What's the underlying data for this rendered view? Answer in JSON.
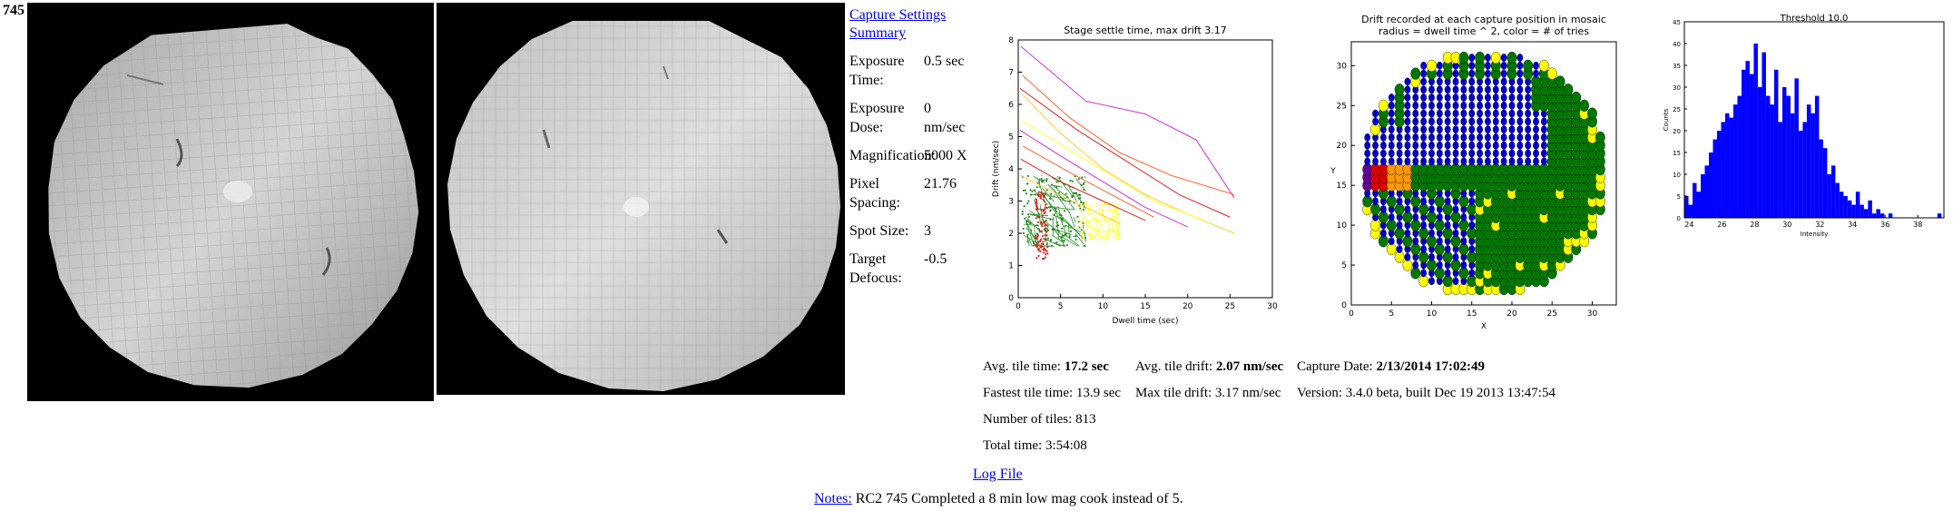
{
  "section": {
    "number": "745"
  },
  "settings": {
    "capture_settings_link": "Capture Settings",
    "summary_link": "Summary",
    "rows": [
      {
        "label": "Exposure Time:",
        "value": "0.5 sec"
      },
      {
        "label": "Exposure Dose:",
        "value": "0 nm/sec"
      },
      {
        "label": "Magnification:",
        "value": "5000 X"
      },
      {
        "label": "Pixel Spacing:",
        "value": "21.76"
      },
      {
        "label": "Spot Size:",
        "value": "3"
      },
      {
        "label": "Target Defocus:",
        "value": "-0.5"
      }
    ]
  },
  "charts": {
    "settle": {
      "title": "Stage settle time, max drift 3.17",
      "xlabel": "Dwell time (sec)",
      "ylabel": "Drift (nm/sec)",
      "xticks": [
        "0",
        "5",
        "10",
        "15",
        "20",
        "25",
        "30"
      ],
      "yticks": [
        "0",
        "1",
        "2",
        "3",
        "4",
        "5",
        "6",
        "7",
        "8"
      ]
    },
    "position": {
      "title_line1": "Drift recorded at each capture position in mosaic",
      "title_line2": "radius = dwell time ^ 2, color = # of tries",
      "xlabel": "X",
      "ylabel": "Y",
      "xticks": [
        "0",
        "5",
        "10",
        "15",
        "20",
        "25",
        "30"
      ],
      "yticks": [
        "0",
        "5",
        "10",
        "15",
        "20",
        "25",
        "30"
      ]
    },
    "histogram": {
      "title": "Threshold 10.0",
      "xlabel": "Intensity",
      "ylabel": "Counts",
      "xticks": [
        "24",
        "26",
        "28",
        "30",
        "32",
        "34",
        "36",
        "38"
      ],
      "yticks": [
        "0",
        "5",
        "10",
        "15",
        "20",
        "25",
        "30",
        "35",
        "40",
        "45"
      ]
    }
  },
  "chart_data": [
    {
      "type": "line",
      "title": "Stage settle time, max drift 3.17",
      "xlabel": "Dwell time (sec)",
      "ylabel": "Drift (nm/sec)",
      "xlim": [
        0,
        30
      ],
      "ylim": [
        0,
        8
      ],
      "grid": false,
      "series_colors": [
        "#cc33cc",
        "#ff6633",
        "#dd2222",
        "#ffcc33",
        "#ffff33",
        "#228b22"
      ],
      "long_series": [
        [
          [
            0.3,
            7.8
          ],
          [
            8,
            6.1
          ],
          [
            15,
            5.7
          ],
          [
            21,
            4.9
          ],
          [
            25.5,
            3.1
          ]
        ],
        [
          [
            0.5,
            6.9
          ],
          [
            6,
            5.6
          ],
          [
            12,
            4.5
          ],
          [
            18,
            3.8
          ],
          [
            25.5,
            3.2
          ]
        ],
        [
          [
            0.2,
            6.5
          ],
          [
            7,
            5.2
          ],
          [
            13,
            4.2
          ],
          [
            19,
            3.2
          ],
          [
            25,
            2.5
          ]
        ],
        [
          [
            0.5,
            6.3
          ],
          [
            5,
            5.1
          ],
          [
            10,
            4.0
          ],
          [
            15,
            3.2
          ],
          [
            20,
            2.6
          ],
          [
            25.5,
            2.0
          ]
        ],
        [
          [
            0.4,
            5.5
          ],
          [
            6,
            4.6
          ],
          [
            11,
            3.8
          ],
          [
            16,
            3.0
          ],
          [
            22,
            2.4
          ]
        ],
        [
          [
            0.2,
            5.2
          ],
          [
            5,
            4.4
          ],
          [
            10,
            3.6
          ],
          [
            15,
            2.8
          ],
          [
            20,
            2.2
          ]
        ],
        [
          [
            0.6,
            4.7
          ],
          [
            6,
            3.9
          ],
          [
            11,
            3.2
          ],
          [
            16,
            2.5
          ]
        ],
        [
          [
            0.3,
            4.3
          ],
          [
            5,
            3.6
          ],
          [
            10,
            3.0
          ],
          [
            15,
            2.4
          ]
        ],
        [
          [
            0.2,
            3.8
          ],
          [
            4,
            3.3
          ],
          [
            8,
            2.8
          ],
          [
            12,
            2.3
          ]
        ]
      ],
      "clusters": [
        {
          "color": "#228b22",
          "x": [
            0.5,
            8
          ],
          "y": [
            1.6,
            3.8
          ]
        },
        {
          "color": "#dd2222",
          "x": [
            2,
            3.5
          ],
          "y": [
            1.2,
            3.3
          ]
        },
        {
          "color": "#ffff33",
          "x": [
            7,
            12
          ],
          "y": [
            1.8,
            3.0
          ]
        }
      ]
    },
    {
      "type": "scatter",
      "title": "Drift recorded at each capture position in mosaic radius = dwell time ^ 2, color = # of tries",
      "xlabel": "X",
      "ylabel": "Y",
      "xlim": [
        0,
        33
      ],
      "ylim": [
        0,
        33
      ],
      "grid_extent": {
        "x": [
          1,
          32
        ],
        "y": [
          1,
          32
        ],
        "circle_center": [
          16.5,
          16.5
        ],
        "circle_radius": 15.5
      },
      "colors": {
        "blue": "#0000cc",
        "green": "#007700",
        "yellow": "#ffff00",
        "red": "#dd0000",
        "orange": "#ff9900",
        "purple": "#660099"
      }
    },
    {
      "type": "bar",
      "title": "Threshold 10.0",
      "xlabel": "Intensity",
      "ylabel": "Counts",
      "xlim": [
        23.7,
        39.6
      ],
      "ylim": [
        0,
        45
      ],
      "bin_start": 23.7,
      "bin_width": 0.25,
      "values": [
        5,
        3,
        8,
        6,
        10,
        12,
        15,
        18,
        20,
        22,
        24,
        23,
        26,
        28,
        34,
        36,
        33,
        40,
        30,
        38,
        28,
        26,
        34,
        22,
        30,
        28,
        24,
        32,
        20,
        22,
        26,
        24,
        28,
        18,
        16,
        10,
        12,
        8,
        6,
        5,
        4,
        3,
        6,
        3,
        2,
        4,
        1,
        2,
        1,
        0,
        1,
        0,
        0,
        0,
        0,
        0,
        0,
        0,
        0,
        0,
        0,
        0,
        1
      ]
    }
  ],
  "stats": {
    "avg_tile_time_label": "Avg. tile time: ",
    "avg_tile_time": "17.2 sec",
    "fastest_tile_time_label": "Fastest tile time: ",
    "fastest_tile_time": "13.9 sec",
    "number_of_tiles_label": "Number of tiles: ",
    "number_of_tiles": "813",
    "total_time_label": "Total time: ",
    "total_time": "3:54:08",
    "avg_tile_drift_label": "Avg. tile drift: ",
    "avg_tile_drift": "2.07 nm/sec",
    "max_tile_drift_label": "Max tile drift: ",
    "max_tile_drift": "3.17 nm/sec",
    "capture_date_label": "Capture Date: ",
    "capture_date": "2/13/2014 17:02:49",
    "version_label": "Version: ",
    "version": "3.4.0 beta, built Dec 19 2013 13:47:54"
  },
  "footer": {
    "log_file_link": "Log File",
    "notes_link": "Notes:",
    "notes_text": " RC2 745 Completed a 8 min low mag cook instead of 5."
  },
  "colors": {
    "link": "#0000ee",
    "mosaic_bg": "#000000",
    "hist_bar": "#0000ff"
  },
  "icons": {
    "mosaic_left": "em-mosaic-image",
    "mosaic_right": "em-mosaic-overview-image"
  }
}
